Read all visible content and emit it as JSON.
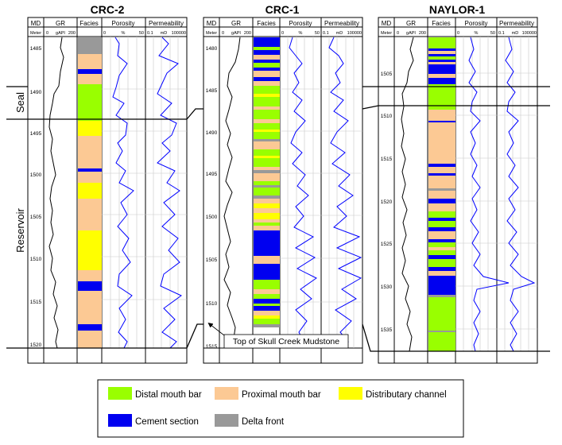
{
  "wells": [
    {
      "name": "CRC-2",
      "headers": {
        "md": "MD",
        "gr": "GR",
        "facies": "Facies",
        "porosity": "Porosity",
        "permeability": "Permeability"
      },
      "units": {
        "md": "Meter",
        "gr_min": "0",
        "gr_unit": "gAPI",
        "gr_max": "200",
        "por_min": "0",
        "por_unit": "%",
        "por_max": "50",
        "perm_min": "0.1",
        "perm_unit": "mD",
        "perm_max": "100000"
      },
      "depth_ticks": [
        "1485",
        "1490",
        "1495",
        "1500",
        "1505",
        "1510",
        "1515",
        "1520"
      ]
    },
    {
      "name": "CRC-1",
      "headers": {
        "md": "MD",
        "gr": "GR",
        "facies": "Facies",
        "porosity": "Porosity",
        "permeability": "Permeability"
      },
      "units": {
        "md": "Meter",
        "gr_min": "0",
        "gr_unit": "gAPI",
        "gr_max": "200",
        "por_min": "0",
        "por_unit": "%",
        "por_max": "50",
        "perm_min": "0.1",
        "perm_unit": "mD",
        "perm_max": "100000"
      },
      "depth_ticks": [
        "1480",
        "1485",
        "1490",
        "1495",
        "1500",
        "1505",
        "1510",
        "1515"
      ]
    },
    {
      "name": "NAYLOR-1",
      "headers": {
        "md": "MD",
        "gr": "GR",
        "facies": "Facies",
        "porosity": "Porosity",
        "permeability": "Permeability"
      },
      "units": {
        "md": "Meter",
        "gr_min": "0",
        "gr_unit": "gAPI",
        "gr_max": "200",
        "por_min": "0",
        "por_unit": "%",
        "por_max": "50",
        "perm_min": "0.1",
        "perm_unit": "mD",
        "perm_max": "100000"
      },
      "depth_ticks": [
        "1505",
        "1510",
        "1515",
        "1520",
        "1525",
        "1530",
        "1535"
      ]
    }
  ],
  "zones": {
    "seal": "Seal",
    "reservoir": "Reservoir"
  },
  "annotation": "Top of Skull Creek Mudstone",
  "legend": [
    {
      "label": "Distal mouth bar",
      "color": "#99ff00"
    },
    {
      "label": "Proximal mouth bar",
      "color": "#fcc994"
    },
    {
      "label": "Distributary channel",
      "color": "#ffff00"
    },
    {
      "label": "Cement section",
      "color": "#0000f0"
    },
    {
      "label": "Delta front",
      "color": "#999999"
    }
  ]
}
